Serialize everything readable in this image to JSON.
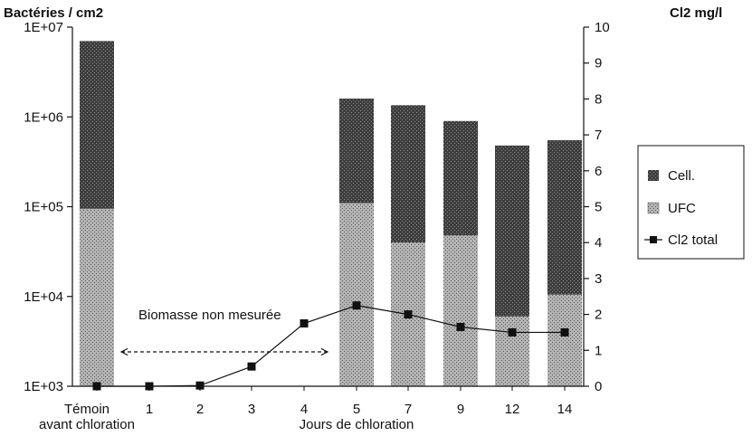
{
  "chart_data": {
    "type": "bar",
    "ylabel_left": "Bactéries / cm2",
    "ylabel_right": "Cl2 mg/l",
    "xlabel": "Jours de chloration",
    "x_left_label": [
      "Témoin",
      "avant chloration"
    ],
    "categories": [
      "",
      "1",
      "2",
      "3",
      "4",
      "5",
      "7",
      "9",
      "12",
      "14"
    ],
    "y_left": {
      "scale": "log",
      "range": [
        1000,
        10000000
      ],
      "ticks": [
        "1E+03",
        "1E+04",
        "1E+05",
        "1E+06",
        "1E+07"
      ]
    },
    "y_right": {
      "scale": "linear",
      "range": [
        0,
        10
      ],
      "ticks": [
        "0",
        "1",
        "2",
        "3",
        "4",
        "5",
        "6",
        "7",
        "8",
        "9",
        "10"
      ]
    },
    "series": [
      {
        "name": "Cell.",
        "kind": "bar",
        "axis": "left",
        "color": "#4a4a4a",
        "values": [
          7000000,
          null,
          null,
          null,
          null,
          1600000,
          1350000,
          900000,
          480000,
          550000
        ]
      },
      {
        "name": "UFC",
        "kind": "bar",
        "axis": "left",
        "color": "#a9a9a9",
        "values": [
          95000,
          null,
          null,
          null,
          null,
          110000,
          40000,
          48000,
          6000,
          10500
        ]
      },
      {
        "name": "Cl2 total",
        "kind": "line",
        "axis": "right",
        "color": "#111111",
        "values": [
          0,
          0,
          0.02,
          0.55,
          1.75,
          2.25,
          2.0,
          1.65,
          1.5,
          1.5
        ]
      }
    ],
    "annotation": "Biomasse non mesurée",
    "legend_position": "right",
    "grid": false
  }
}
